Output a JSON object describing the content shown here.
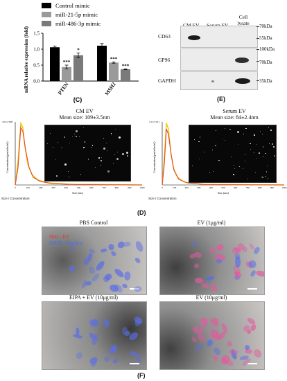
{
  "panels": {
    "C": "(C)",
    "D": "(D)",
    "E": "(E)",
    "F": "(F)"
  },
  "chart_data": {
    "type": "bar",
    "ylabel": "mRNA relative expression (fold)",
    "categories": [
      "PTEN",
      "MSH2"
    ],
    "ylim": [
      0.0,
      1.5
    ],
    "yticks": [
      "0.0",
      "0.5",
      "1.0",
      "1.5"
    ],
    "series": [
      {
        "name": "Control mimic",
        "color": "#000000",
        "values": [
          1.06,
          1.11
        ],
        "errors": [
          0.04,
          0.07
        ],
        "sig": [
          "",
          ""
        ]
      },
      {
        "name": "miR-21-5p mimic",
        "color": "#9a9a9a",
        "values": [
          0.44,
          0.58
        ],
        "errors": [
          0.06,
          0.02
        ],
        "sig": [
          "***",
          "***"
        ]
      },
      {
        "name": "miR-486-3p mimic",
        "color": "#7a7a7a",
        "values": [
          0.81,
          0.37
        ],
        "errors": [
          0.07,
          0.01
        ],
        "sig": [
          "*",
          "***"
        ]
      }
    ]
  },
  "western": {
    "lanes": [
      "CM EV",
      "Serum EV",
      "Cell lysate"
    ],
    "rows": [
      "CD63",
      "GP96",
      "GAPDH"
    ],
    "markers": [
      "70kDa",
      "55kDa",
      "100kDa",
      "70kDa",
      "35kDa"
    ]
  },
  "nta": [
    {
      "title": "CM EV",
      "mean": "Mean size: 109±3.5nm",
      "ytop": "3.0×e+008",
      "ylabel": "Concentration (particles/ml)",
      "xlabel": "Size (nm)",
      "footer": "Size / Concentration",
      "xticks": [
        "0",
        "100",
        "200",
        "300",
        "400",
        "500",
        "600",
        "700",
        "800",
        "900",
        "1000"
      ]
    },
    {
      "title": "Serum EV",
      "mean": "Mean size: 84±2.4nm",
      "ytop": "1.0×e+011",
      "ylabel": "Concentration (particles/ml)",
      "xlabel": "Size (nm)",
      "footer": "Size / Concentration",
      "xticks": [
        "0",
        "100",
        "200",
        "300",
        "400",
        "500",
        "600",
        "700",
        "800",
        "900",
        "1000"
      ]
    }
  ],
  "microscopy": {
    "legend_did": "DiD - EV",
    "legend_dapi": "DAPI - Nucleus",
    "titles": [
      "PBS Control",
      "EV (1μg/ml)",
      "EIPA + EV (10μg/ml)",
      "EV (10μg/ml)"
    ]
  }
}
